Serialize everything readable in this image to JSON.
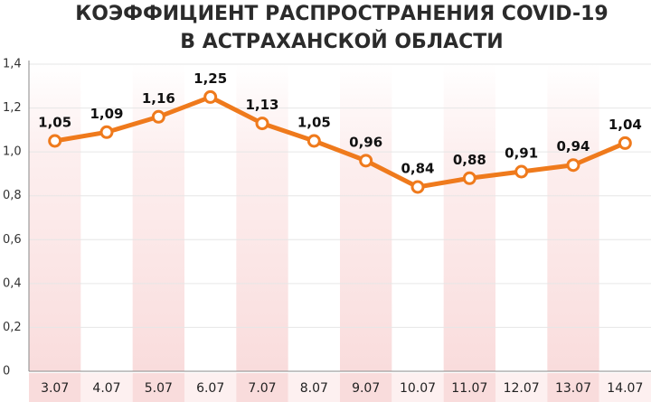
{
  "chart_data": {
    "type": "line",
    "title": "КОЭФФИЦИЕНТ РАСПРОСТРАНЕНИЯ COVID-19",
    "subtitle": "В АСТРАХАНСКОЙ ОБЛАСТИ",
    "categories": [
      "3.07",
      "4.07",
      "5.07",
      "6.07",
      "7.07",
      "8.07",
      "9.07",
      "10.07",
      "11.07",
      "12.07",
      "13.07",
      "14.07"
    ],
    "values": [
      1.05,
      1.09,
      1.16,
      1.25,
      1.13,
      1.05,
      0.96,
      0.84,
      0.88,
      0.91,
      0.94,
      1.04
    ],
    "value_labels": [
      "1,05",
      "1,09",
      "1,16",
      "1,25",
      "1,13",
      "1,05",
      "0,96",
      "0,84",
      "0,88",
      "0,91",
      "0,94",
      "1,04"
    ],
    "color": "#ef7a1c",
    "ylim": [
      0,
      1.4
    ],
    "yticks": [
      0,
      {
        "value": 0.2,
        "label": "0,2"
      },
      {
        "value": 0.4,
        "label": "0,4"
      },
      {
        "value": 0.6,
        "label": "0,6"
      },
      {
        "value": 0.8,
        "label": "0,8"
      },
      {
        "value": 1.0,
        "label": "1,0"
      },
      {
        "value": 1.2,
        "label": "1,2"
      },
      {
        "value": 1.4,
        "label": "1,4"
      }
    ],
    "grid": true
  }
}
